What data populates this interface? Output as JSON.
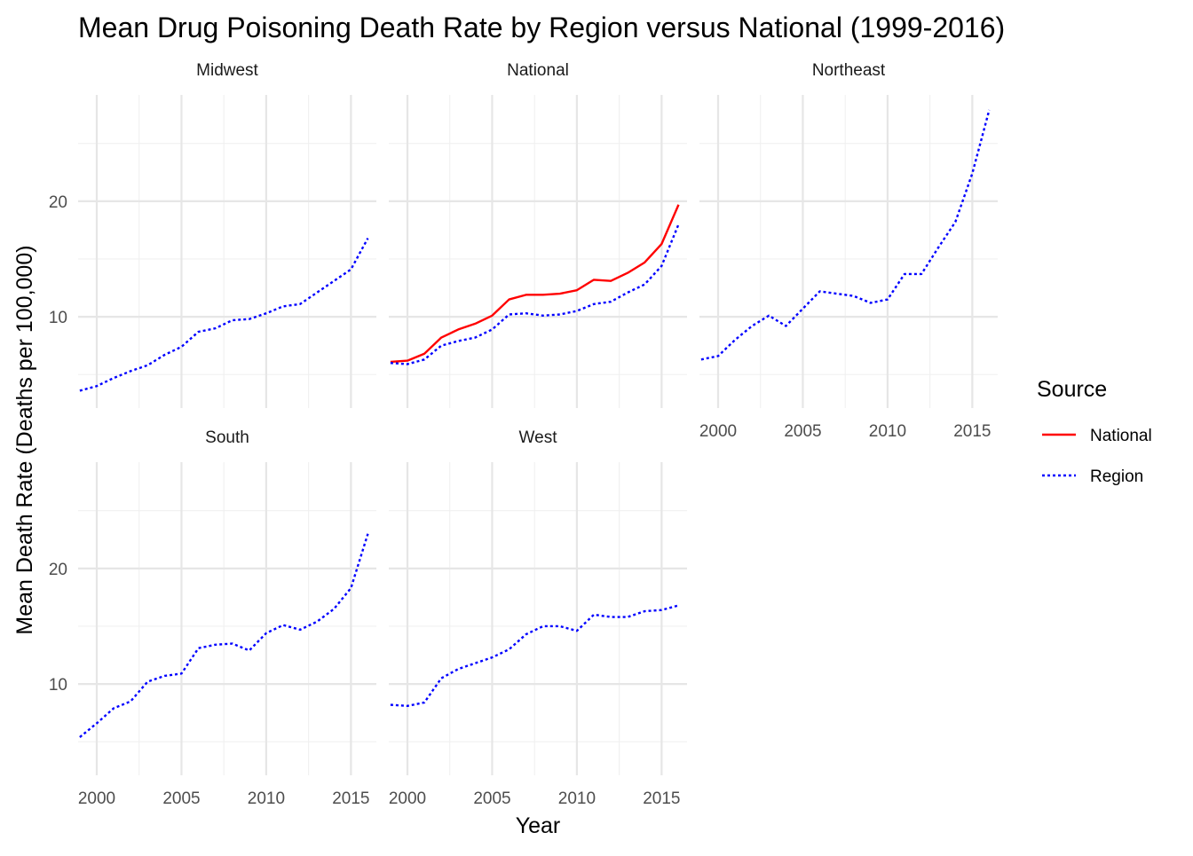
{
  "chart_data": {
    "type": "line",
    "title": "Mean Drug Poisoning Death Rate by Region versus National (1999-2016)",
    "xlabel": "Year",
    "ylabel": "Mean Death Rate (Deaths per 100,000)",
    "xlim": [
      1998.9,
      2016.5
    ],
    "ylim": [
      2.1,
      29.2
    ],
    "x_ticks": [
      2000,
      2005,
      2010,
      2015
    ],
    "y_ticks": [
      10,
      20
    ],
    "grid": true,
    "facet_layout": "3 columns, 2 rows",
    "legend": {
      "title": "Source",
      "placement": "right",
      "entries": [
        {
          "name": "National",
          "color": "#ff0000",
          "style": "solid"
        },
        {
          "name": "Region",
          "color": "#0000ff",
          "style": "dotted"
        }
      ]
    },
    "x": [
      1999,
      2000,
      2001,
      2002,
      2003,
      2004,
      2005,
      2006,
      2007,
      2008,
      2009,
      2010,
      2011,
      2012,
      2013,
      2014,
      2015,
      2016
    ],
    "panels": [
      {
        "label": "Midwest",
        "series": [
          {
            "name": "Region",
            "values": [
              3.6,
              4.0,
              4.7,
              5.3,
              5.8,
              6.7,
              7.4,
              8.7,
              9.0,
              9.7,
              9.8,
              10.3,
              10.9,
              11.1,
              12.1,
              13.1,
              14.1,
              16.8
            ]
          }
        ]
      },
      {
        "label": "National",
        "series": [
          {
            "name": "National",
            "values": [
              6.1,
              6.2,
              6.8,
              8.2,
              8.9,
              9.4,
              10.1,
              11.5,
              11.9,
              11.9,
              12.0,
              12.3,
              13.2,
              13.1,
              13.8,
              14.7,
              16.3,
              19.7
            ]
          },
          {
            "name": "Region",
            "values": [
              6.0,
              5.9,
              6.3,
              7.5,
              7.9,
              8.2,
              8.9,
              10.2,
              10.3,
              10.1,
              10.2,
              10.5,
              11.1,
              11.3,
              12.1,
              12.8,
              14.4,
              18.0
            ]
          }
        ]
      },
      {
        "label": "Northeast",
        "series": [
          {
            "name": "Region",
            "values": [
              6.3,
              6.6,
              8.0,
              9.2,
              10.1,
              9.2,
              10.7,
              12.2,
              12.0,
              11.8,
              11.2,
              11.5,
              13.7,
              13.7,
              16.0,
              18.2,
              22.4,
              27.9
            ]
          }
        ]
      },
      {
        "label": "South",
        "series": [
          {
            "name": "Region",
            "values": [
              5.4,
              6.6,
              7.9,
              8.5,
              10.2,
              10.7,
              10.9,
              13.1,
              13.4,
              13.5,
              12.9,
              14.4,
              15.1,
              14.7,
              15.4,
              16.5,
              18.3,
              23.0
            ]
          }
        ]
      },
      {
        "label": "West",
        "series": [
          {
            "name": "Region",
            "values": [
              8.2,
              8.1,
              8.4,
              10.5,
              11.3,
              11.8,
              12.3,
              13.0,
              14.3,
              15.0,
              15.0,
              14.6,
              16.0,
              15.8,
              15.8,
              16.3,
              16.4,
              16.8
            ]
          }
        ]
      }
    ]
  }
}
